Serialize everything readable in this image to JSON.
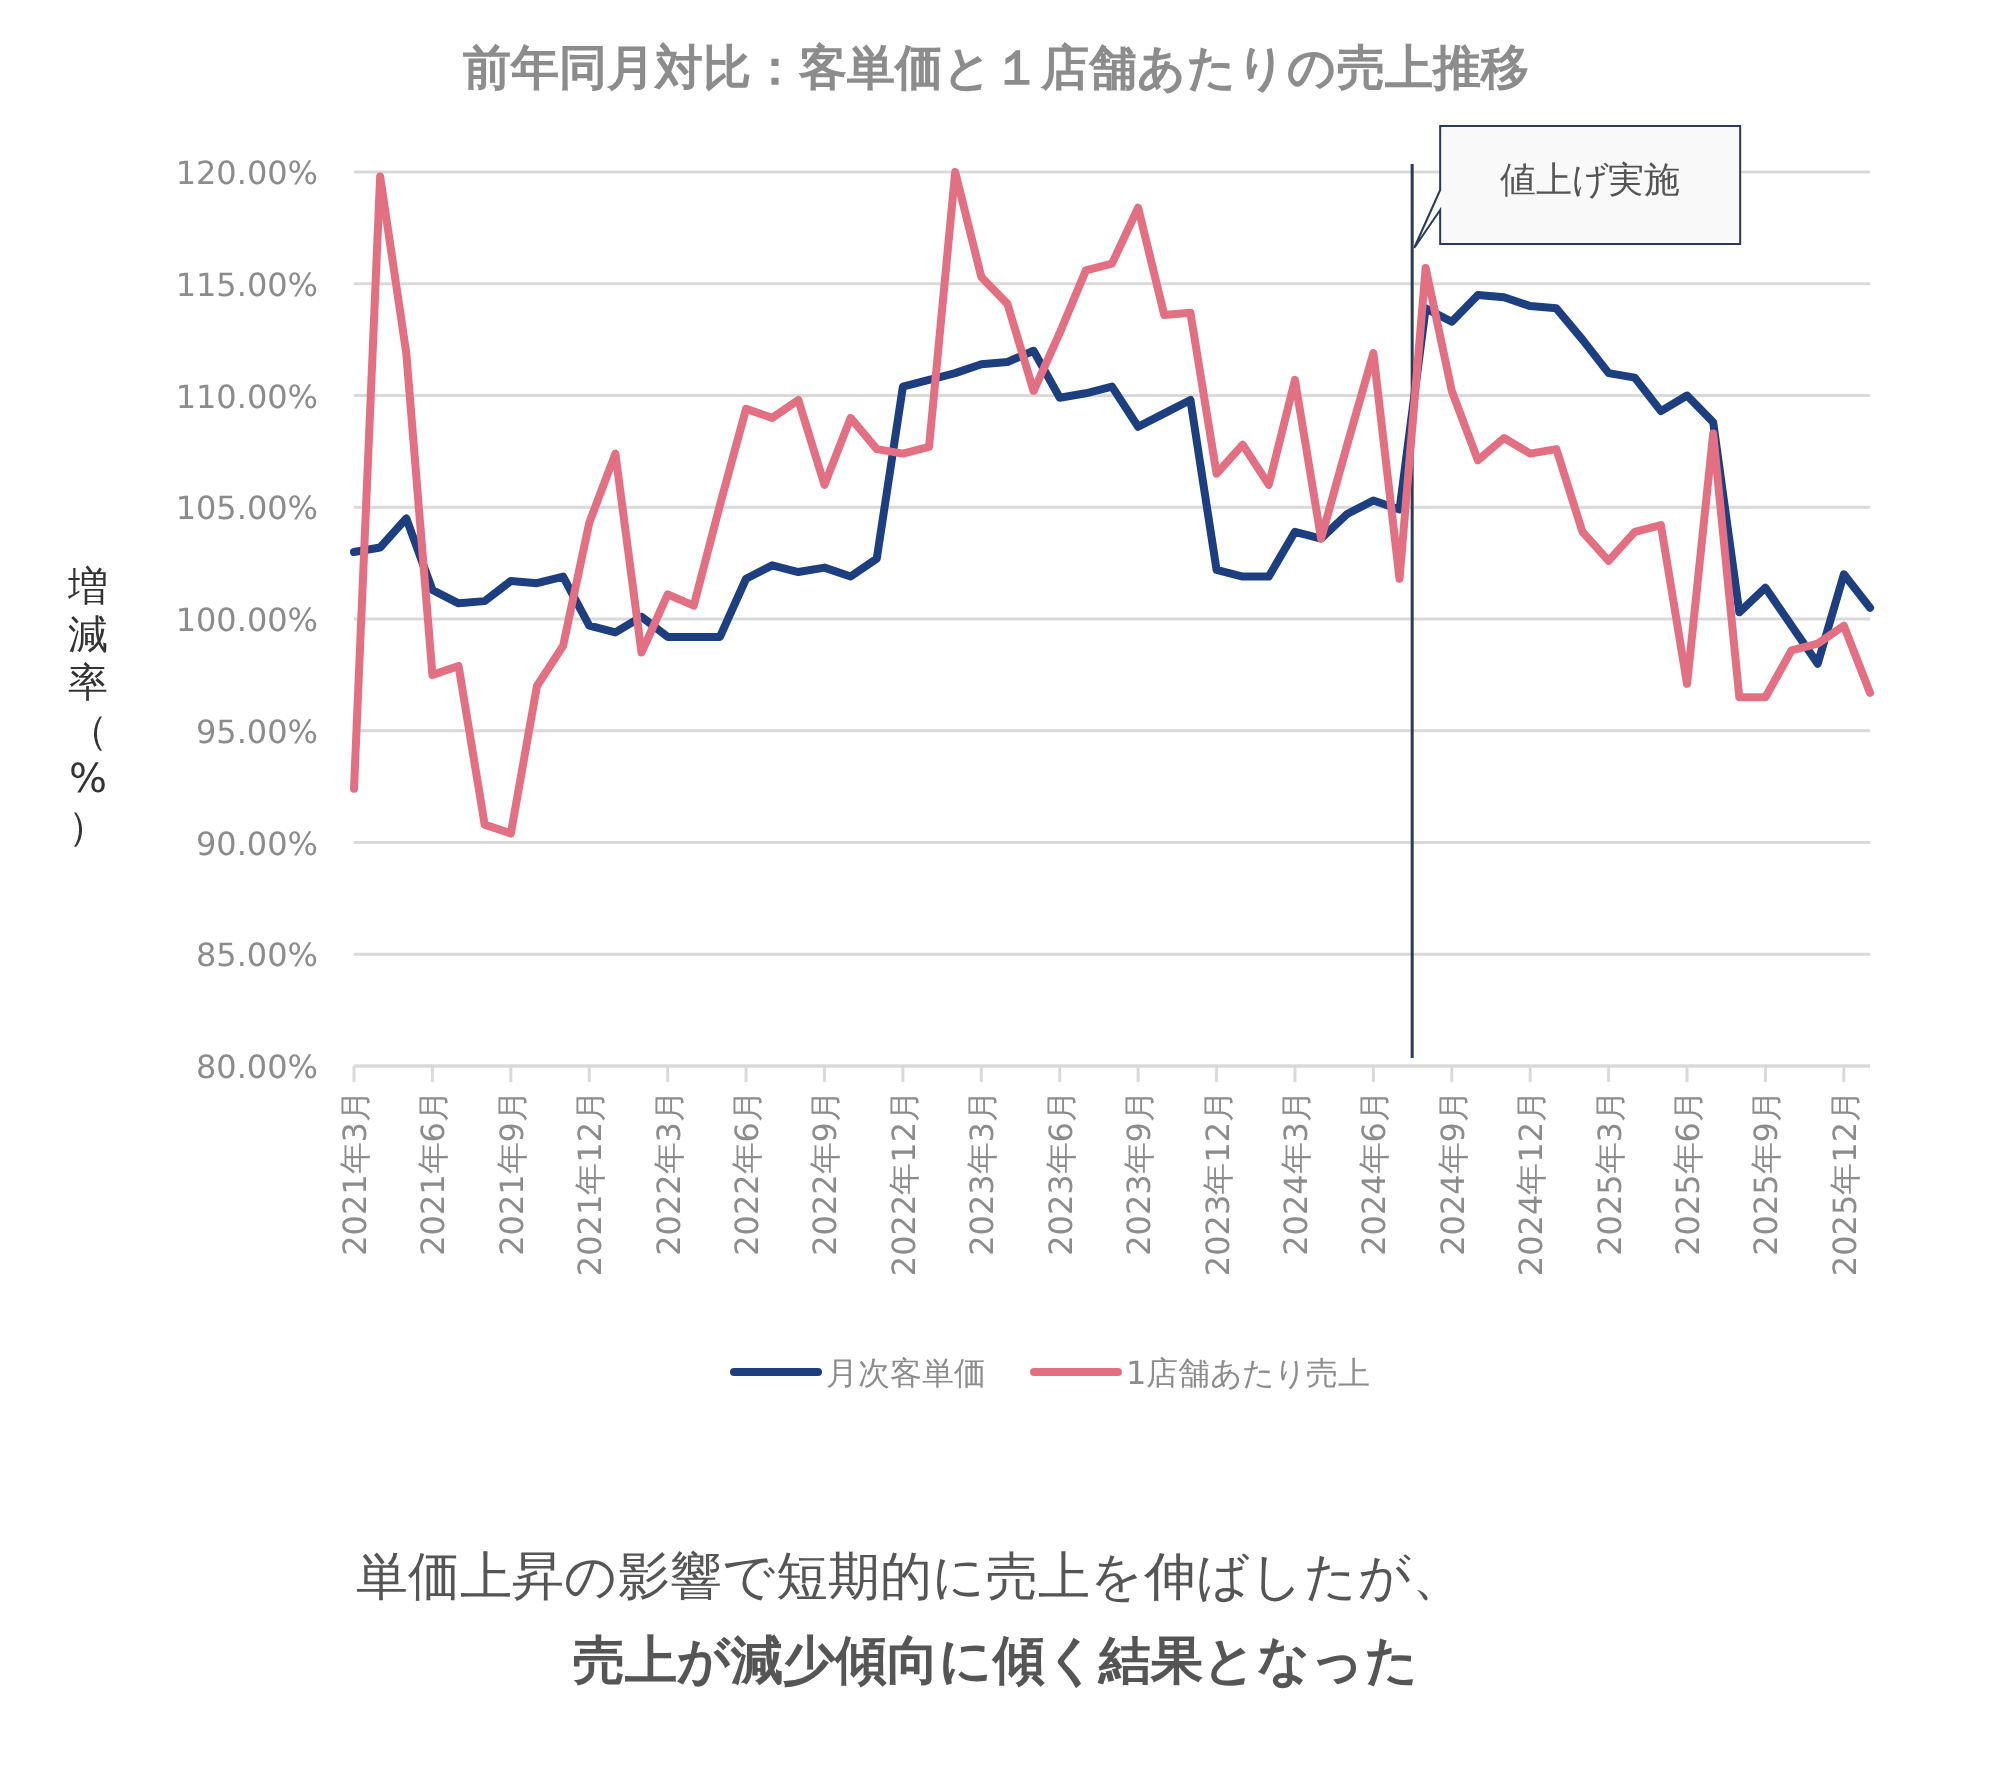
{
  "chart_data": {
    "type": "line",
    "title": "前年同月対比：客単価と１店舗あたりの売上推移",
    "ylabel": "増減率（%）",
    "x": [
      "2021-03",
      "2021-04",
      "2021-05",
      "2021-06",
      "2021-07",
      "2021-08",
      "2021-09",
      "2021-10",
      "2021-11",
      "2021-12",
      "2022-01",
      "2022-02",
      "2022-03",
      "2022-04",
      "2022-05",
      "2022-06",
      "2022-07",
      "2022-08",
      "2022-09",
      "2022-10",
      "2022-11",
      "2022-12",
      "2023-01",
      "2023-02",
      "2023-03",
      "2023-04",
      "2023-05",
      "2023-06",
      "2023-07",
      "2023-08",
      "2023-09",
      "2023-10",
      "2023-11",
      "2023-12",
      "2024-01",
      "2024-02",
      "2024-03",
      "2024-04",
      "2024-05",
      "2024-06",
      "2024-07",
      "2024-08",
      "2024-09",
      "2024-10",
      "2024-11",
      "2024-12",
      "2025-01",
      "2025-02",
      "2025-03",
      "2025-04",
      "2025-05",
      "2025-06",
      "2025-07",
      "2025-08",
      "2025-09",
      "2025-10",
      "2025-11",
      "2025-12",
      "2026-01"
    ],
    "series": [
      {
        "name": "月次客単価",
        "color": "#1d3f80",
        "values": [
          103.0,
          103.2,
          104.5,
          101.3,
          100.7,
          100.8,
          101.7,
          101.6,
          101.9,
          99.7,
          99.4,
          100.1,
          99.2,
          99.2,
          99.2,
          101.8,
          102.4,
          102.1,
          102.3,
          101.9,
          102.7,
          110.4,
          110.7,
          111.0,
          111.4,
          111.5,
          112.0,
          109.9,
          110.1,
          110.4,
          108.6,
          109.2,
          109.8,
          102.2,
          101.9,
          101.9,
          103.9,
          103.6,
          104.7,
          105.3,
          104.9,
          113.9,
          113.3,
          114.5,
          114.4,
          114.0,
          113.9,
          112.5,
          111.0,
          110.8,
          109.3,
          110.0,
          108.8,
          100.3,
          101.4,
          99.7,
          98.0,
          102.0,
          100.5
        ]
      },
      {
        "name": "1店舗あたり売上",
        "color": "#e36f82",
        "values": [
          92.4,
          119.8,
          111.9,
          97.5,
          97.9,
          90.8,
          90.4,
          97.0,
          98.8,
          104.3,
          107.4,
          98.5,
          101.1,
          100.6,
          105.1,
          109.4,
          109.0,
          109.8,
          106.0,
          109.0,
          107.6,
          107.4,
          107.7,
          120.0,
          115.3,
          114.1,
          110.2,
          112.8,
          115.6,
          115.9,
          118.4,
          113.6,
          113.7,
          106.5,
          107.8,
          106.0,
          110.7,
          103.6,
          107.8,
          111.9,
          101.8,
          115.7,
          110.2,
          107.1,
          108.1,
          107.4,
          107.6,
          103.9,
          102.6,
          103.9,
          104.2,
          97.1,
          108.3,
          96.5,
          96.5,
          98.6,
          98.9,
          99.7,
          96.7
        ]
      }
    ],
    "xlim": [
      "2021-03",
      "2026-01"
    ],
    "xticks": [
      {
        "value": "2021-03",
        "label": "2021年3月"
      },
      {
        "value": "2021-06",
        "label": "2021年6月"
      },
      {
        "value": "2021-09",
        "label": "2021年9月"
      },
      {
        "value": "2021-12",
        "label": "2021年12月"
      },
      {
        "value": "2022-03",
        "label": "2022年3月"
      },
      {
        "value": "2022-06",
        "label": "2022年6月"
      },
      {
        "value": "2022-09",
        "label": "2022年9月"
      },
      {
        "value": "2022-12",
        "label": "2022年12月"
      },
      {
        "value": "2023-03",
        "label": "2023年3月"
      },
      {
        "value": "2023-06",
        "label": "2023年6月"
      },
      {
        "value": "2023-09",
        "label": "2023年9月"
      },
      {
        "value": "2023-12",
        "label": "2023年12月"
      },
      {
        "value": "2024-03",
        "label": "2024年3月"
      },
      {
        "value": "2024-06",
        "label": "2024年6月"
      },
      {
        "value": "2024-09",
        "label": "2024年9月"
      },
      {
        "value": "2024-12",
        "label": "2024年12月"
      },
      {
        "value": "2025-03",
        "label": "2025年3月"
      },
      {
        "value": "2025-06",
        "label": "2025年6月"
      },
      {
        "value": "2025-09",
        "label": "2025年9月"
      },
      {
        "value": "2025-12",
        "label": "2025年12月"
      }
    ],
    "ylim": [
      80,
      120
    ],
    "yticks": [
      {
        "value": 80,
        "label": "80.00%"
      },
      {
        "value": 85,
        "label": "85.00%"
      },
      {
        "value": 90,
        "label": "90.00%"
      },
      {
        "value": 95,
        "label": "95.00%"
      },
      {
        "value": 100,
        "label": "100.00%"
      },
      {
        "value": 105,
        "label": "105.00%"
      },
      {
        "value": 110,
        "label": "110.00%"
      },
      {
        "value": 115,
        "label": "115.00%"
      },
      {
        "value": 120,
        "label": "120.00%"
      }
    ],
    "grid": "y",
    "legend": "bottom",
    "ref_lines": [
      {
        "axis": "x",
        "value": "2024-07-16",
        "label": "値上げ実施",
        "color": "#2b3a55"
      }
    ],
    "annotations": [
      "単価上昇の影響で短期的に売上を伸ばしたが、",
      "売上が減少傾向に傾く結果となった"
    ]
  }
}
